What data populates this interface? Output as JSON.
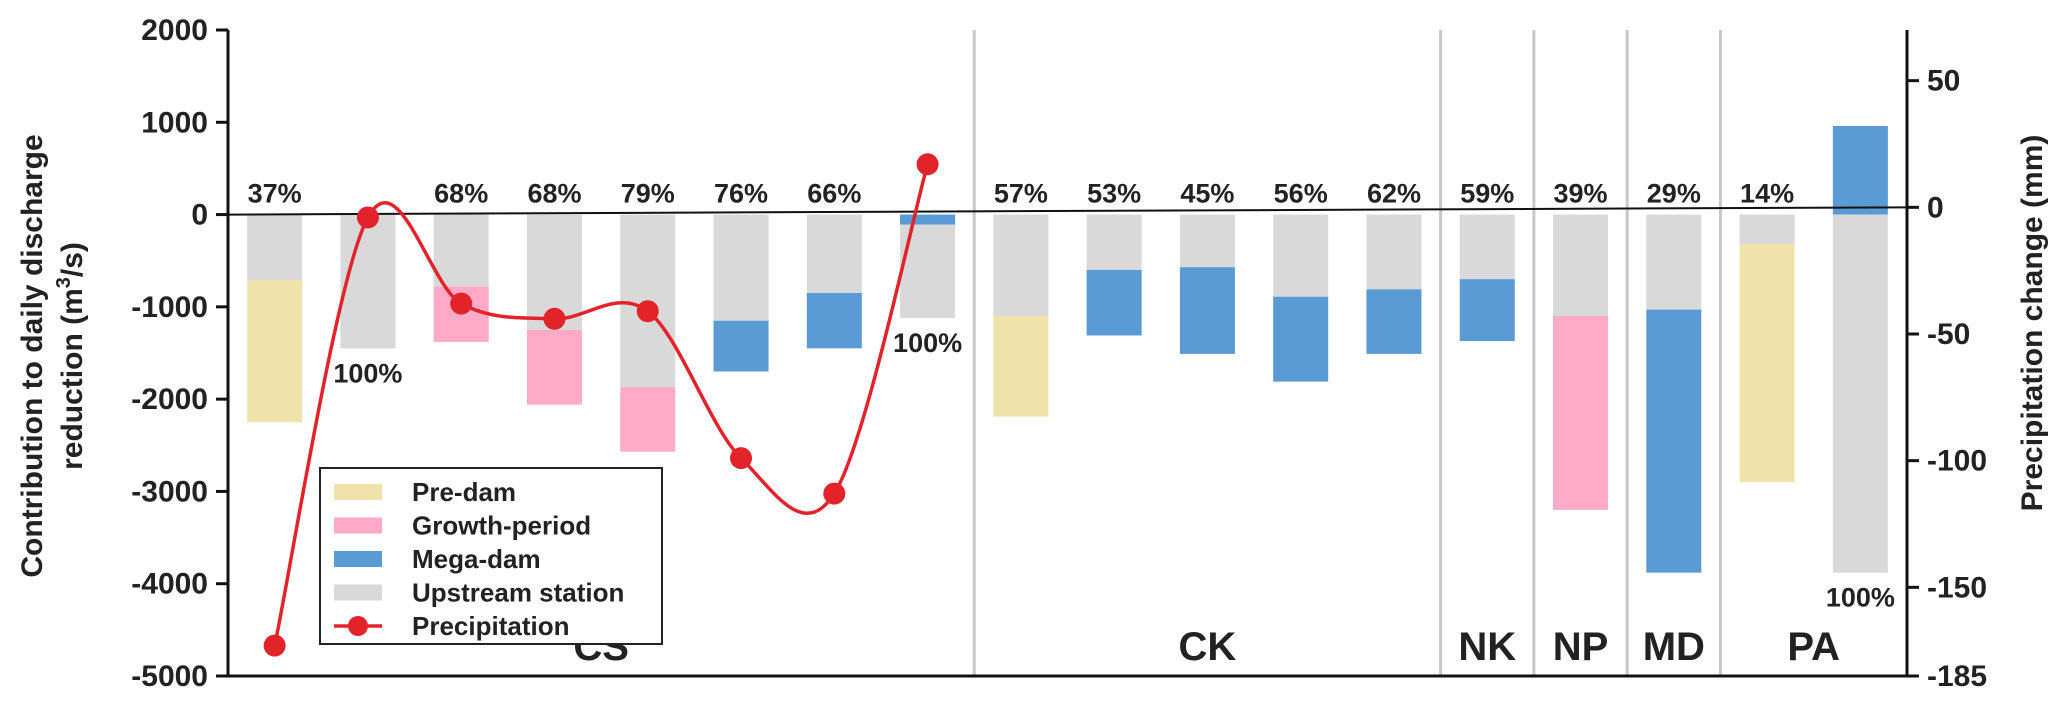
{
  "chart_data": {
    "type": "bar",
    "subtype": "stacked-bar-with-line",
    "colors": {
      "Pre-dam": "#efe2ab",
      "Growth-period": "#ffaac6",
      "Mega-dam": "#5b9bd5",
      "Upstream station": "#d9d9d9",
      "Precipitation": "#e3232a"
    },
    "y_left": {
      "label_line1": "Contribution to daily discharge",
      "label_line2_prefix": "reduction (m",
      "label_line2_sup": "3",
      "label_line2_suffix": "/s)",
      "lim": [
        -5000,
        2000
      ],
      "ticks": [
        2000,
        1000,
        0,
        -1000,
        -2000,
        -3000,
        -4000,
        -5000
      ]
    },
    "y_right": {
      "label": "Precipitation change (mm)",
      "lim": [
        -185,
        70
      ],
      "ticks": [
        50,
        0,
        -50,
        -100,
        -150,
        -185
      ]
    },
    "legend": {
      "placement": "lower-left",
      "items": [
        {
          "name": "Pre-dam",
          "kind": "bar"
        },
        {
          "name": "Growth-period",
          "kind": "bar"
        },
        {
          "name": "Mega-dam",
          "kind": "bar"
        },
        {
          "name": "Upstream station",
          "kind": "bar"
        },
        {
          "name": "Precipitation",
          "kind": "line"
        }
      ]
    },
    "groups": [
      {
        "name": "CS",
        "count": 8
      },
      {
        "name": "CK",
        "count": 5
      },
      {
        "name": "NK",
        "count": 1
      },
      {
        "name": "NP",
        "count": 1
      },
      {
        "name": "MD",
        "count": 1
      },
      {
        "name": "PA",
        "count": 2
      }
    ],
    "bars": [
      {
        "label": "37%",
        "label_pos": "top",
        "segments": [
          {
            "type": "Upstream station",
            "from": 0,
            "to": -710
          },
          {
            "type": "Pre-dam",
            "from": -710,
            "to": -2250
          }
        ]
      },
      {
        "label": "100%",
        "label_pos": "bottom",
        "segments": [
          {
            "type": "Upstream station",
            "from": 0,
            "to": -1450
          }
        ]
      },
      {
        "label": "68%",
        "label_pos": "top",
        "segments": [
          {
            "type": "Upstream station",
            "from": 0,
            "to": -780
          },
          {
            "type": "Growth-period",
            "from": -780,
            "to": -1380
          }
        ]
      },
      {
        "label": "68%",
        "label_pos": "top",
        "segments": [
          {
            "type": "Upstream station",
            "from": 0,
            "to": -1250
          },
          {
            "type": "Growth-period",
            "from": -1250,
            "to": -2060
          }
        ]
      },
      {
        "label": "79%",
        "label_pos": "top",
        "segments": [
          {
            "type": "Upstream station",
            "from": 0,
            "to": -1870
          },
          {
            "type": "Growth-period",
            "from": -1870,
            "to": -2570
          }
        ]
      },
      {
        "label": "76%",
        "label_pos": "top",
        "segments": [
          {
            "type": "Upstream station",
            "from": 0,
            "to": -1150
          },
          {
            "type": "Mega-dam",
            "from": -1150,
            "to": -1700
          }
        ]
      },
      {
        "label": "66%",
        "label_pos": "top",
        "segments": [
          {
            "type": "Upstream station",
            "from": 0,
            "to": -850
          },
          {
            "type": "Mega-dam",
            "from": -850,
            "to": -1450
          }
        ]
      },
      {
        "label": "100%",
        "label_pos": "bottom",
        "segments": [
          {
            "type": "Mega-dam",
            "from": 0,
            "to": -110
          },
          {
            "type": "Upstream station",
            "from": -110,
            "to": -1120
          }
        ]
      },
      {
        "label": "57%",
        "label_pos": "top",
        "segments": [
          {
            "type": "Upstream station",
            "from": 0,
            "to": -1100
          },
          {
            "type": "Pre-dam",
            "from": -1100,
            "to": -2190
          }
        ]
      },
      {
        "label": "53%",
        "label_pos": "top",
        "segments": [
          {
            "type": "Upstream station",
            "from": 0,
            "to": -600
          },
          {
            "type": "Mega-dam",
            "from": -600,
            "to": -1310
          }
        ]
      },
      {
        "label": "45%",
        "label_pos": "top",
        "segments": [
          {
            "type": "Upstream station",
            "from": 0,
            "to": -570
          },
          {
            "type": "Mega-dam",
            "from": -570,
            "to": -1510
          }
        ]
      },
      {
        "label": "56%",
        "label_pos": "top",
        "segments": [
          {
            "type": "Upstream station",
            "from": 0,
            "to": -890
          },
          {
            "type": "Mega-dam",
            "from": -890,
            "to": -1810
          }
        ]
      },
      {
        "label": "62%",
        "label_pos": "top",
        "segments": [
          {
            "type": "Upstream station",
            "from": 0,
            "to": -810
          },
          {
            "type": "Mega-dam",
            "from": -810,
            "to": -1510
          }
        ]
      },
      {
        "label": "59%",
        "label_pos": "top",
        "segments": [
          {
            "type": "Upstream station",
            "from": 0,
            "to": -700
          },
          {
            "type": "Mega-dam",
            "from": -700,
            "to": -1370
          }
        ]
      },
      {
        "label": "39%",
        "label_pos": "top",
        "segments": [
          {
            "type": "Upstream station",
            "from": 0,
            "to": -1100
          },
          {
            "type": "Growth-period",
            "from": -1100,
            "to": -3200
          }
        ]
      },
      {
        "label": "29%",
        "label_pos": "top",
        "segments": [
          {
            "type": "Upstream station",
            "from": 0,
            "to": -1030
          },
          {
            "type": "Mega-dam",
            "from": -1030,
            "to": -3880
          }
        ]
      },
      {
        "label": "14%",
        "label_pos": "top",
        "segments": [
          {
            "type": "Upstream station",
            "from": 0,
            "to": -320
          },
          {
            "type": "Pre-dam",
            "from": -320,
            "to": -2900
          }
        ]
      },
      {
        "label": "100%",
        "label_pos": "bottom",
        "segments": [
          {
            "type": "Mega-dam",
            "from": 0,
            "to": 960
          },
          {
            "type": "Upstream station",
            "from": 0,
            "to": -3880
          }
        ]
      }
    ],
    "precipitation": {
      "name": "Precipitation",
      "bar_index": [
        0,
        1,
        2,
        3,
        4,
        5,
        6,
        7
      ],
      "values": [
        -173,
        -4,
        -38,
        -44,
        -41,
        -99,
        -113,
        17
      ]
    }
  }
}
